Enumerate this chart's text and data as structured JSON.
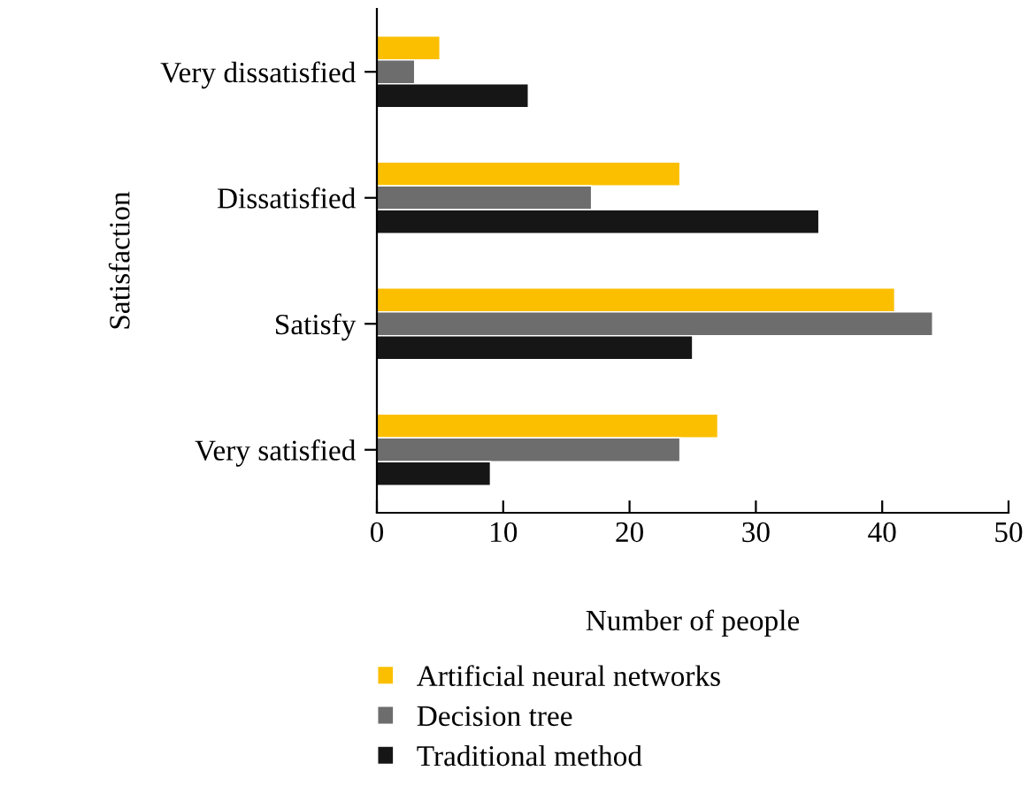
{
  "chart_data": {
    "type": "bar",
    "orientation": "horizontal",
    "xlabel": "Number of people",
    "ylabel": "Satisfaction",
    "categories": [
      "Very dissatisfied",
      "Dissatisfied",
      "Satisfy",
      "Very satisfied"
    ],
    "series": [
      {
        "name": "Artificial neural networks",
        "color": "#fbbf00",
        "values": [
          5,
          24,
          41,
          27
        ]
      },
      {
        "name": "Decision tree",
        "color": "#6d6d6d",
        "values": [
          3,
          17,
          44,
          24
        ]
      },
      {
        "name": "Traditional method",
        "color": "#161616",
        "values": [
          12,
          35,
          25,
          9
        ]
      }
    ],
    "xlim": [
      0,
      50
    ],
    "xticks": [
      0,
      10,
      20,
      30,
      40,
      50
    ],
    "grid": false,
    "legend": "bottom"
  }
}
